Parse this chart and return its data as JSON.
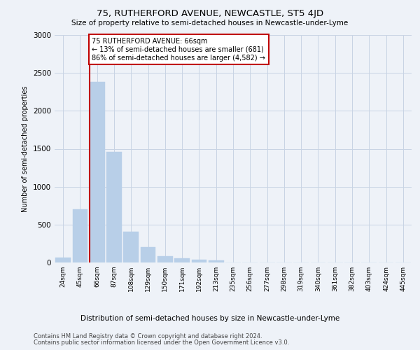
{
  "title": "75, RUTHERFORD AVENUE, NEWCASTLE, ST5 4JD",
  "subtitle": "Size of property relative to semi-detached houses in Newcastle-under-Lyme",
  "xlabel_bottom": "Distribution of semi-detached houses by size in Newcastle-under-Lyme",
  "ylabel": "Number of semi-detached properties",
  "footer_line1": "Contains HM Land Registry data © Crown copyright and database right 2024.",
  "footer_line2": "Contains public sector information licensed under the Open Government Licence v3.0.",
  "property_label": "75 RUTHERFORD AVENUE: 66sqm",
  "smaller_pct": 13,
  "smaller_count": 681,
  "larger_pct": 86,
  "larger_count": 4582,
  "bar_color": "#b8cfe8",
  "highlight_color": "#c00000",
  "annotation_box_color": "#c00000",
  "grid_color": "#c8d4e4",
  "bg_color": "#eef2f8",
  "categories": [
    "24sqm",
    "45sqm",
    "66sqm",
    "87sqm",
    "108sqm",
    "129sqm",
    "150sqm",
    "171sqm",
    "192sqm",
    "213sqm",
    "235sqm",
    "256sqm",
    "277sqm",
    "298sqm",
    "319sqm",
    "340sqm",
    "361sqm",
    "382sqm",
    "403sqm",
    "424sqm",
    "445sqm"
  ],
  "values": [
    65,
    700,
    2380,
    1460,
    410,
    200,
    85,
    55,
    40,
    30,
    0,
    0,
    0,
    0,
    0,
    0,
    0,
    0,
    0,
    0,
    0
  ],
  "highlight_bin_index": 2,
  "ylim": [
    0,
    3000
  ],
  "yticks": [
    0,
    500,
    1000,
    1500,
    2000,
    2500,
    3000
  ]
}
